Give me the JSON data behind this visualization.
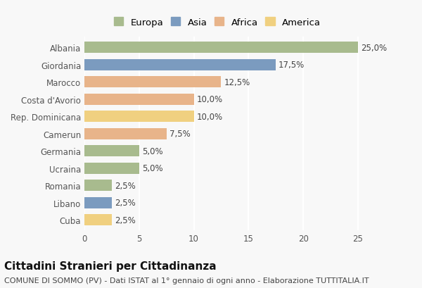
{
  "countries": [
    "Albania",
    "Giordania",
    "Marocco",
    "Costa d'Avorio",
    "Rep. Dominicana",
    "Camerun",
    "Germania",
    "Ucraina",
    "Romania",
    "Libano",
    "Cuba"
  ],
  "values": [
    25.0,
    17.5,
    12.5,
    10.0,
    10.0,
    7.5,
    5.0,
    5.0,
    2.5,
    2.5,
    2.5
  ],
  "labels": [
    "25,0%",
    "17,5%",
    "12,5%",
    "10,0%",
    "10,0%",
    "7,5%",
    "5,0%",
    "5,0%",
    "2,5%",
    "2,5%",
    "2,5%"
  ],
  "continents": [
    "Europa",
    "Asia",
    "Africa",
    "Africa",
    "America",
    "Africa",
    "Europa",
    "Europa",
    "Europa",
    "Asia",
    "America"
  ],
  "continent_colors": {
    "Europa": "#a8bb8e",
    "Asia": "#7b9bbf",
    "Africa": "#e8b48a",
    "America": "#f0d080"
  },
  "legend_order": [
    "Europa",
    "Asia",
    "Africa",
    "America"
  ],
  "title": "Cittadini Stranieri per Cittadinanza",
  "subtitle": "COMUNE DI SOMMO (PV) - Dati ISTAT al 1° gennaio di ogni anno - Elaborazione TUTTITALIA.IT",
  "xlim": [
    0,
    27
  ],
  "xticks": [
    0,
    5,
    10,
    15,
    20,
    25
  ],
  "background_color": "#f8f8f8",
  "grid_color": "#ffffff",
  "bar_height": 0.65,
  "title_fontsize": 11,
  "subtitle_fontsize": 8,
  "label_fontsize": 8.5,
  "tick_fontsize": 8.5,
  "legend_fontsize": 9.5
}
